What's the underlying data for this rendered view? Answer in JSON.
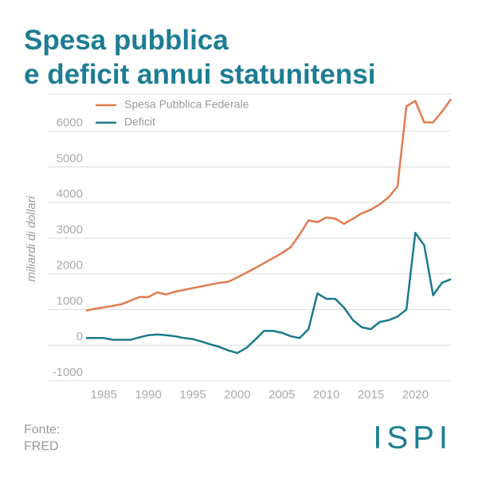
{
  "chart_data": {
    "type": "line",
    "title_lines": [
      "Spesa pubblica",
      "e deficit annui statunitensi"
    ],
    "y_label": "miliardi di dollari",
    "source_lines": [
      "Fonte:",
      "FRED"
    ],
    "logo": "ISPI",
    "x": [
      1983,
      1984,
      1985,
      1986,
      1987,
      1988,
      1989,
      1990,
      1991,
      1992,
      1993,
      1994,
      1995,
      1996,
      1997,
      1998,
      1999,
      2000,
      2001,
      2002,
      2003,
      2004,
      2005,
      2006,
      2007,
      2008,
      2009,
      2010,
      2011,
      2012,
      2013,
      2014,
      2015,
      2016,
      2017,
      2018,
      2019,
      2020,
      2021,
      2022,
      2023,
      2024
    ],
    "series": [
      {
        "name": "Spesa Pubblica Federale",
        "color": "#e27b4d",
        "values": [
          970,
          1020,
          1060,
          1100,
          1150,
          1250,
          1350,
          1350,
          1480,
          1420,
          1500,
          1550,
          1600,
          1650,
          1700,
          1750,
          1780,
          1900,
          2030,
          2160,
          2300,
          2440,
          2580,
          2750,
          3100,
          3500,
          3450,
          3580,
          3550,
          3400,
          3550,
          3700,
          3800,
          3950,
          4150,
          4450,
          6700,
          6850,
          6250,
          6250,
          6550,
          6900
        ]
      },
      {
        "name": "Deficit",
        "color": "#1a7a8c",
        "values": [
          200,
          200,
          200,
          150,
          150,
          150,
          220,
          280,
          300,
          280,
          250,
          200,
          170,
          100,
          20,
          -50,
          -150,
          -220,
          -80,
          150,
          400,
          400,
          350,
          250,
          200,
          450,
          1450,
          1300,
          1300,
          1050,
          700,
          500,
          450,
          650,
          700,
          800,
          1000,
          3150,
          2800,
          1400,
          1750,
          1850
        ]
      }
    ],
    "xlim": [
      1983,
      2024
    ],
    "xticks": [
      1985,
      1990,
      1995,
      2000,
      2005,
      2010,
      2015,
      2020
    ],
    "ylim": [
      -1000,
      7000
    ],
    "yticks": [
      -1000,
      0,
      1000,
      2000,
      3000,
      4000,
      5000,
      6000
    ],
    "grid": true,
    "legend": "top-left"
  }
}
